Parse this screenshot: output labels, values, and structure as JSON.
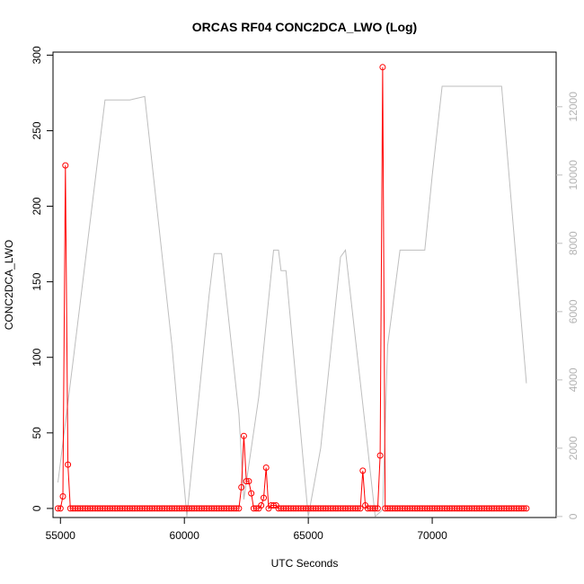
{
  "chart_data": {
    "type": "line",
    "title": "ORCAS RF04 CONC2DCA_LWO (Log)",
    "xlabel": "UTC Seconds",
    "ylabel": "CONC2DCA_LWO",
    "xlim": [
      54700,
      75000
    ],
    "ylim": [
      -6,
      302
    ],
    "x_ticks": [
      55000,
      60000,
      65000,
      70000
    ],
    "y_ticks": [
      0,
      50,
      100,
      150,
      200,
      250,
      300
    ],
    "y2_lim": [
      -30,
      13600
    ],
    "y2_ticks": [
      0,
      2000,
      4000,
      6000,
      8000,
      10000,
      12000
    ],
    "colors": {
      "primary": "#ff0000",
      "secondary": "#bebebe",
      "axis": "#000000"
    },
    "series": [
      {
        "style": "line-with-circles",
        "color": "#ff0000",
        "x_start": 54900,
        "x_step": 100,
        "baseline": 0,
        "n_points": 190,
        "spikes": [
          [
            55100,
            8
          ],
          [
            55200,
            227
          ],
          [
            55300,
            29
          ],
          [
            62300,
            14
          ],
          [
            62400,
            48
          ],
          [
            62500,
            18
          ],
          [
            62600,
            18
          ],
          [
            62700,
            10
          ],
          [
            63100,
            2
          ],
          [
            63200,
            7
          ],
          [
            63300,
            27
          ],
          [
            63500,
            2
          ],
          [
            63600,
            2
          ],
          [
            63700,
            2
          ],
          [
            67200,
            25
          ],
          [
            67300,
            2
          ],
          [
            67900,
            35
          ],
          [
            68000,
            292
          ]
        ]
      },
      {
        "style": "line",
        "axis": "right",
        "color": "#bebebe",
        "points": [
          [
            54900,
            1000
          ],
          [
            55500,
            4500
          ],
          [
            56800,
            12200
          ],
          [
            57800,
            12200
          ],
          [
            58400,
            12300
          ],
          [
            59500,
            5000
          ],
          [
            60100,
            0
          ],
          [
            61000,
            6500
          ],
          [
            61200,
            7700
          ],
          [
            61500,
            7700
          ],
          [
            62200,
            3000
          ],
          [
            62400,
            500
          ],
          [
            63000,
            3500
          ],
          [
            63600,
            7800
          ],
          [
            63800,
            7800
          ],
          [
            63900,
            7200
          ],
          [
            64100,
            7200
          ],
          [
            65000,
            0
          ],
          [
            65500,
            2000
          ],
          [
            66300,
            7600
          ],
          [
            66500,
            7800
          ],
          [
            67400,
            2000
          ],
          [
            67700,
            0
          ],
          [
            68000,
            200
          ],
          [
            68200,
            5000
          ],
          [
            68700,
            7800
          ],
          [
            69700,
            7800
          ],
          [
            70000,
            10000
          ],
          [
            70400,
            12600
          ],
          [
            71800,
            12600
          ],
          [
            72800,
            12600
          ],
          [
            73800,
            3900
          ]
        ]
      }
    ]
  }
}
